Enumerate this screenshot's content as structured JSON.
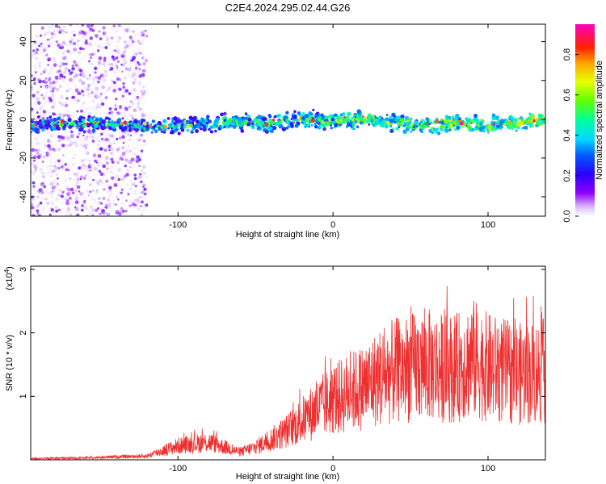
{
  "figure": {
    "title": "C2E4.2024.295.02.44.G26"
  },
  "chart_data": [
    {
      "type": "heatmap",
      "xlabel": "Height of straight line (km)",
      "ylabel": "Frequency (Hz)",
      "xlim": [
        -195,
        137
      ],
      "ylim": [
        -50,
        49
      ],
      "x_ticks": [
        -100,
        0,
        100
      ],
      "y_ticks": [
        -40,
        -20,
        0,
        20,
        40
      ],
      "colorbar": {
        "label": "Normalized spectral amplitude",
        "range": [
          0,
          0.95
        ],
        "ticks": [
          0.0,
          0.2,
          0.4,
          0.6,
          0.8
        ],
        "colormap": "rainbow (violet to magenta)"
      },
      "ridge_center_freq_hz": {
        "x_km": [
          -195,
          -150,
          -120,
          -100,
          -80,
          -60,
          -40,
          -20,
          0,
          20,
          40,
          60,
          80,
          100,
          120,
          137
        ],
        "freq_hz": [
          -3,
          -2,
          -4,
          -3,
          -2,
          -1,
          -2,
          0,
          -1,
          0,
          -2,
          -3,
          -2,
          -3,
          -2,
          0
        ]
      }
    },
    {
      "type": "line",
      "xlabel": "Height of straight line (km)",
      "ylabel": "SNR (10 * v/v)",
      "y_multiplier": "(x10^4)",
      "xlim": [
        -195,
        137
      ],
      "ylim": [
        0,
        3.05
      ],
      "x_ticks": [
        -100,
        0,
        100
      ],
      "y_ticks": [
        1,
        2,
        3
      ],
      "series": [
        {
          "color": "#ee3030",
          "envelope": {
            "x_km": [
              -195,
              -160,
              -120,
              -100,
              -80,
              -60,
              -50,
              -40,
              -30,
              -20,
              -10,
              0,
              10,
              20,
              30,
              40,
              50,
              60,
              70,
              80,
              90,
              100,
              110,
              120,
              137
            ],
            "y_x1e4": [
              0.02,
              0.03,
              0.06,
              0.22,
              0.28,
              0.12,
              0.2,
              0.32,
              0.45,
              0.62,
              0.8,
              0.95,
              1.05,
              1.15,
              1.3,
              1.4,
              1.45,
              1.5,
              1.45,
              1.45,
              1.6,
              1.45,
              1.4,
              1.35,
              1.4
            ]
          }
        }
      ]
    }
  ]
}
